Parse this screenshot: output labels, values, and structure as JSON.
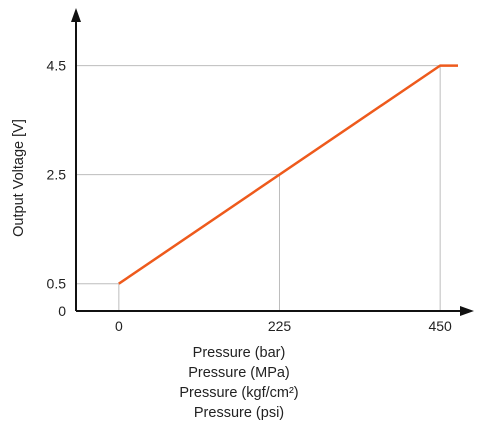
{
  "chart_data": {
    "type": "line",
    "title": "",
    "xlabel_lines": [
      "Pressure (bar)",
      "Pressure (MPa)",
      "Pressure (kgf/cm²)",
      "Pressure (psi)"
    ],
    "ylabel": "Output Voltage [V]",
    "x_ticks": [
      0,
      225,
      450
    ],
    "x_tick_labels": [
      "0",
      "225",
      "450"
    ],
    "y_ticks": [
      0,
      0.5,
      2.5,
      4.5
    ],
    "y_tick_labels": [
      "0",
      "0.5",
      "2.5",
      "4.5"
    ],
    "xlim": [
      -60,
      475
    ],
    "ylim": [
      0,
      5.3
    ],
    "reference_lines": [
      {
        "x": 0,
        "y": 0.5
      },
      {
        "x": 225,
        "y": 2.5
      },
      {
        "x": 450,
        "y": 4.5
      }
    ],
    "series": [
      {
        "x": [
          0,
          450,
          475
        ],
        "y": [
          0.5,
          4.5,
          4.5
        ],
        "color": "#ee5a1c"
      }
    ],
    "grid": false,
    "axis_color": "#111111",
    "reference_line_color": "#bdbdbd"
  }
}
